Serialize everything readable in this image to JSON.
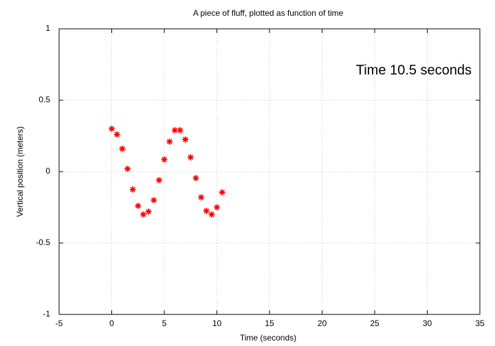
{
  "chart_data": {
    "type": "scatter",
    "title": "A piece of fluff, plotted as function of time",
    "x_label": "Time (seconds)",
    "y_label": "Vertical position (meters)",
    "annotation": "Time 10.5 seconds",
    "x": [
      0,
      0.5,
      1,
      1.5,
      2,
      2.5,
      3,
      3.5,
      4,
      4.5,
      5,
      5.5,
      6,
      6.5,
      7,
      7.5,
      8,
      8.5,
      9,
      9.5,
      10,
      10.5
    ],
    "values": [
      0.3,
      0.26,
      0.16,
      0.02,
      -0.125,
      -0.24,
      -0.3,
      -0.28,
      -0.2,
      -0.06,
      0.085,
      0.21,
      0.29,
      0.29,
      0.225,
      0.1,
      -0.045,
      -0.18,
      -0.275,
      -0.3,
      -0.25,
      -0.145
    ],
    "color": "#ff0000",
    "xlim": [
      -5,
      35
    ],
    "xticks": [
      -5,
      0,
      5,
      10,
      15,
      20,
      25,
      30,
      35
    ],
    "ylim": [
      -1,
      1
    ],
    "yticks": [
      -1,
      -0.5,
      0,
      0.5,
      1
    ],
    "grid": true
  }
}
